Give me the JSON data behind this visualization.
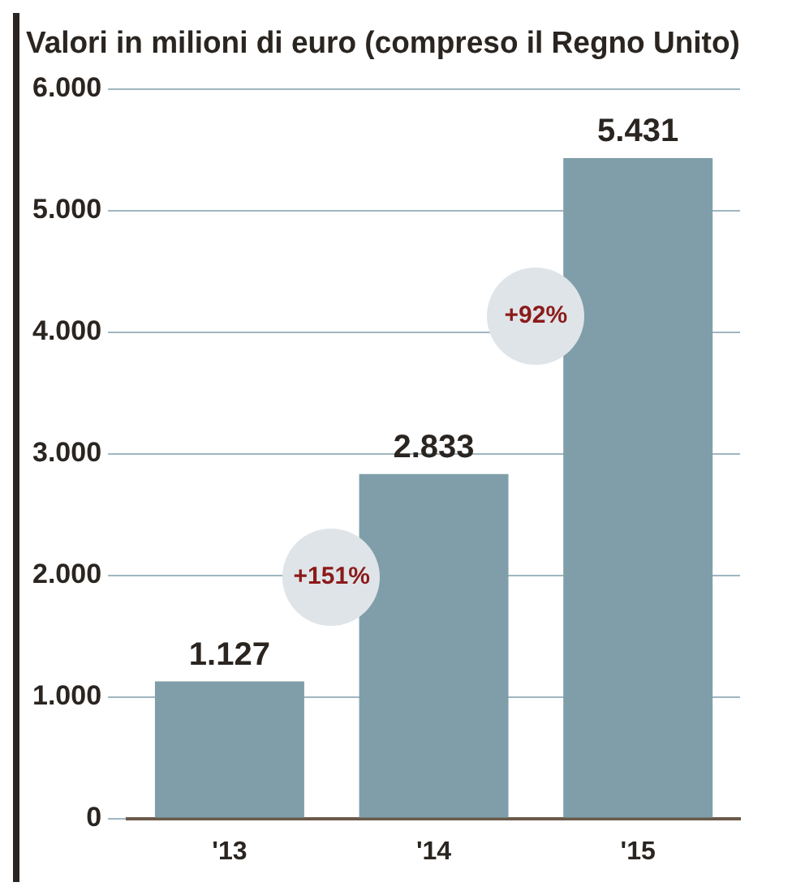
{
  "chart_data": {
    "type": "bar",
    "title": "Valori in milioni di euro (compreso il Regno Unito)",
    "categories": [
      "'13",
      "'14",
      "'15"
    ],
    "values": [
      1127,
      2833,
      5431
    ],
    "color": "#7f9ea9",
    "value_labels": [
      "1.127",
      "2.833",
      "5.431"
    ],
    "ylim": [
      0,
      6000
    ],
    "yticks": [
      {
        "value": 0,
        "label": "0"
      },
      {
        "value": 1000,
        "label": "1.000"
      },
      {
        "value": 2000,
        "label": "2.000"
      },
      {
        "value": 3000,
        "label": "3.000"
      },
      {
        "value": 4000,
        "label": "4.000"
      },
      {
        "value": 5000,
        "label": "5.000"
      },
      {
        "value": 6000,
        "label": "6.000"
      }
    ],
    "grid": "y",
    "annotations": [
      "+151%",
      "+92%"
    ]
  }
}
